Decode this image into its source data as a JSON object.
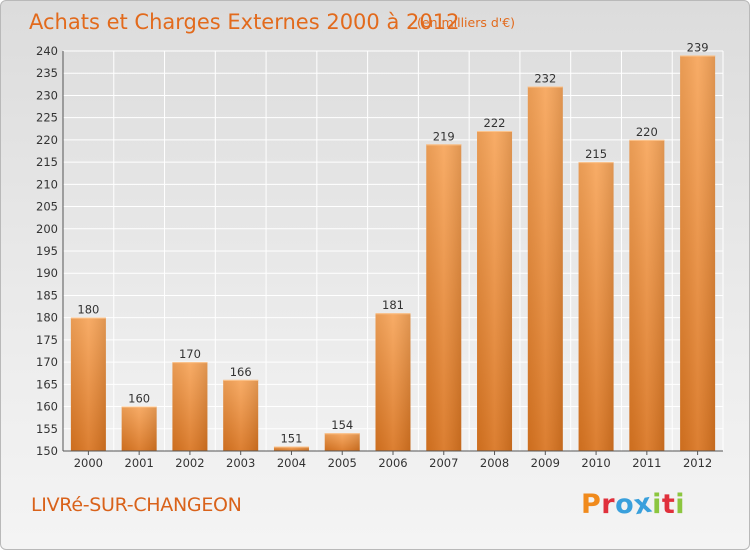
{
  "title": "Achats et Charges Externes 2000 à 2012",
  "unit": "(en milliers d'€)",
  "commune": "LIVRé-SUR-CHANGEON",
  "brand": {
    "letters": [
      "P",
      "r",
      "o",
      "x",
      "i",
      "t",
      "i"
    ],
    "colors": [
      "#f08a1c",
      "#e0303c",
      "#3aa0dc",
      "#3aa0dc",
      "#8cc63f",
      "#e0303c",
      "#8cc63f"
    ]
  },
  "colors": {
    "bar_top": "#f7a55a",
    "bar_bottom": "#dd7a22",
    "title": "#e26a1c",
    "grid": "#ffffff"
  },
  "chart_data": {
    "type": "bar",
    "categories": [
      "2000",
      "2001",
      "2002",
      "2003",
      "2004",
      "2005",
      "2006",
      "2007",
      "2008",
      "2009",
      "2010",
      "2011",
      "2012"
    ],
    "values": [
      180,
      160,
      170,
      166,
      151,
      154,
      181,
      219,
      222,
      232,
      215,
      220,
      239
    ],
    "ylim": [
      150,
      240
    ],
    "yticks": [
      150,
      155,
      160,
      165,
      170,
      175,
      180,
      185,
      190,
      195,
      200,
      205,
      210,
      215,
      220,
      225,
      230,
      235,
      240
    ],
    "grid": true
  }
}
